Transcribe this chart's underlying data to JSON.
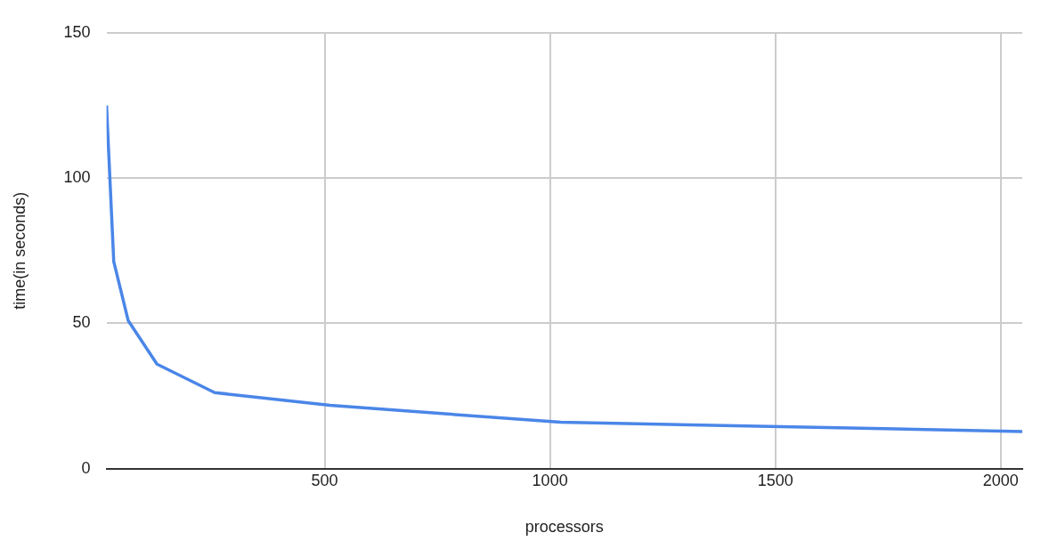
{
  "chart_data": {
    "type": "line",
    "xlabel": "processors",
    "ylabel": "time(in seconds)",
    "x": [
      16,
      32,
      64,
      128,
      256,
      512,
      1024,
      2048
    ],
    "series": [
      {
        "color": "#4a86e8",
        "values": [
          125,
          71.3,
          51,
          36,
          26.2,
          21.8,
          16,
          12.8
        ]
      }
    ],
    "xlim": [
      16,
      2048
    ],
    "xticks": [
      500,
      1000,
      1500,
      2000
    ],
    "ylim": [
      0,
      150
    ],
    "yticks": [
      0,
      50,
      100,
      150
    ],
    "grid": true,
    "legend": false,
    "marker": "none",
    "line_style": "solid"
  }
}
